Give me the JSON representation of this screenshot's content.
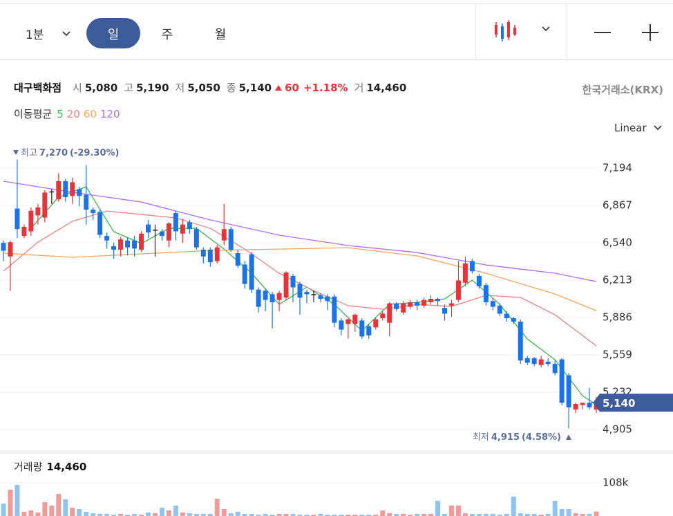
{
  "toolbar": {
    "interval": "1분",
    "tabs": [
      "일",
      "주",
      "월"
    ]
  },
  "header": {
    "name": "대구백화점",
    "fields": [
      {
        "label": "시",
        "value": "5,080"
      },
      {
        "label": "고",
        "value": "5,190"
      },
      {
        "label": "저",
        "value": "5,050"
      },
      {
        "label": "종",
        "value": "5,140"
      }
    ],
    "change": "60",
    "change_pct": "+1.18%",
    "volume_label": "거",
    "volume": "14,460",
    "exchange": "한국거래소(KRX)"
  },
  "ma_label": "이동평균",
  "scale": "Linear",
  "chart_data": {
    "type": "candlestick",
    "xlim": [
      -0.5,
      86.5
    ],
    "ylim": [
      4730,
      7303
    ],
    "yticks": [
      {
        "value": 7194,
        "label": "7,194"
      },
      {
        "value": 6867,
        "label": "6,867"
      },
      {
        "value": 6540,
        "label": "6,540"
      },
      {
        "value": 6213,
        "label": "6,213"
      },
      {
        "value": 5886,
        "label": "5,886"
      },
      {
        "value": 5559,
        "label": "5,559"
      },
      {
        "value": 5232,
        "label": "5,232"
      },
      {
        "value": 4905,
        "label": "4,905"
      }
    ],
    "grid": true,
    "colors": {
      "up": "#e8333a",
      "down": "#1a73e8",
      "flat": "#222222"
    },
    "open": [
      6540,
      6420,
      6840,
      6600,
      6640,
      6780,
      6760,
      6990,
      6920,
      7080,
      6950,
      7010,
      6960,
      6830,
      6810,
      6600,
      6510,
      6480,
      6560,
      6560,
      6480,
      6700,
      6655,
      6640,
      6560,
      6800,
      6620,
      6720,
      6660,
      6480,
      6480,
      6380,
      6560,
      6660,
      6450,
      6350,
      6440,
      6130,
      6120,
      6090,
      6040,
      6060,
      6250,
      6180,
      6110,
      6090,
      6080,
      6070,
      6070,
      5860,
      5830,
      5830,
      5860,
      5810,
      5800,
      5880,
      5840,
      6010,
      5930,
      5980,
      6020,
      5990,
      6020,
      6050,
      5970,
      5990,
      6040,
      6190,
      6380,
      6250,
      6170,
      6030,
      5990,
      5920,
      5880,
      5850,
      5530,
      5530,
      5470,
      5500,
      5480,
      5520,
      5380,
      5080,
      5120,
      5140,
      5080
    ],
    "high": [
      6560,
      6560,
      7270,
      6700,
      6850,
      6880,
      7000,
      7010,
      7150,
      7100,
      7110,
      7030,
      7220,
      6850,
      6830,
      6630,
      6540,
      6590,
      6590,
      6600,
      6640,
      6740,
      6700,
      6660,
      6720,
      6820,
      6750,
      6740,
      6680,
      6500,
      6500,
      6520,
      6880,
      6680,
      6480,
      6380,
      6460,
      6150,
      6140,
      6110,
      6120,
      6290,
      6270,
      6200,
      6130,
      6120,
      6100,
      6090,
      6090,
      5880,
      5880,
      5920,
      5880,
      5830,
      5890,
      5940,
      6020,
      6020,
      6030,
      6040,
      6040,
      6060,
      6080,
      6060,
      6000,
      6040,
      6380,
      6420,
      6400,
      6270,
      6190,
      6060,
      6010,
      5940,
      5890,
      5870,
      5550,
      5540,
      5550,
      5530,
      5510,
      5530,
      5400,
      5140,
      5140,
      5270,
      5190
    ],
    "low": [
      6380,
      6120,
      6580,
      6580,
      6600,
      6700,
      6720,
      6880,
      6900,
      6900,
      6880,
      6860,
      6700,
      6740,
      6580,
      6490,
      6400,
      6420,
      6430,
      6420,
      6460,
      6580,
      6420,
      6560,
      6500,
      6560,
      6540,
      6620,
      6480,
      6360,
      6330,
      6360,
      6520,
      6460,
      6320,
      6140,
      6100,
      5930,
      5940,
      5790,
      5940,
      6040,
      6020,
      5910,
      6010,
      6020,
      6020,
      5950,
      5800,
      5730,
      5700,
      5760,
      5700,
      5700,
      5780,
      5860,
      5720,
      5940,
      5910,
      5960,
      5950,
      5970,
      6000,
      5990,
      5860,
      5890,
      6020,
      6160,
      6270,
      6140,
      5990,
      5950,
      5900,
      5850,
      5830,
      5480,
      5470,
      5460,
      5450,
      5460,
      5380,
      5120,
      4915,
      5050,
      5080,
      5080,
      5050
    ],
    "close": [
      6470,
      6545,
      6660,
      6680,
      6820,
      6850,
      6980,
      6990,
      7080,
      6940,
      7070,
      6950,
      6830,
      6800,
      6610,
      6560,
      6480,
      6570,
      6500,
      6490,
      6620,
      6630,
      6655,
      6600,
      6710,
      6640,
      6700,
      6660,
      6500,
      6420,
      6370,
      6500,
      6660,
      6480,
      6340,
      6180,
      6130,
      5980,
      6040,
      6020,
      6100,
      6280,
      6150,
      6060,
      6090,
      6090,
      6050,
      6030,
      5840,
      5780,
      5870,
      5910,
      5720,
      5730,
      5870,
      5920,
      6010,
      5960,
      6010,
      6020,
      5990,
      6040,
      6050,
      6030,
      5920,
      6010,
      6210,
      6360,
      6290,
      6160,
      6020,
      5980,
      5920,
      5880,
      5850,
      5510,
      5490,
      5480,
      5520,
      5480,
      5400,
      5140,
      5100,
      5130,
      5140,
      5100,
      5140
    ],
    "series": [
      {
        "name": "5",
        "color": "#3cb44b",
        "x": [
          4,
          8,
          12,
          16,
          20,
          24,
          28,
          32,
          36,
          40,
          44,
          48,
          52,
          56,
          60,
          64,
          68,
          72,
          76,
          80,
          84,
          86
        ],
        "values": [
          6667,
          6940,
          7030,
          6637,
          6534,
          6667,
          6667,
          6485,
          6273,
          6001,
          6152,
          6001,
          5771,
          6001,
          6019,
          6049,
          6213,
          6001,
          5698,
          5517,
          5201,
          5123
        ]
      },
      {
        "name": "20",
        "color": "#f08080",
        "x": [
          0,
          5,
          10,
          15,
          20,
          25,
          30,
          35,
          40,
          45,
          50,
          55,
          60,
          65,
          70,
          75,
          80,
          86
        ],
        "values": [
          6292,
          6546,
          6728,
          6818,
          6788,
          6758,
          6667,
          6485,
          6273,
          6122,
          5989,
          5959,
          6001,
          5983,
          6080,
          6062,
          5910,
          5638
        ]
      },
      {
        "name": "60",
        "color": "#f5a35c",
        "x": [
          0,
          10,
          20,
          30,
          40,
          50,
          60,
          70,
          80,
          86
        ],
        "values": [
          6449,
          6413,
          6443,
          6473,
          6485,
          6497,
          6425,
          6273,
          6092,
          5946
        ]
      },
      {
        "name": "120",
        "color": "#b36bf2",
        "x": [
          0,
          10,
          20,
          30,
          40,
          50,
          60,
          70,
          80,
          86
        ],
        "values": [
          7079,
          6982,
          6897,
          6740,
          6607,
          6516,
          6455,
          6346,
          6274,
          6201
        ]
      }
    ],
    "high_annotation": {
      "prefix": "최고",
      "value": "7,270",
      "pct": "(-29.30%)"
    },
    "low_annotation": {
      "prefix": "최저",
      "value": "4,915",
      "pct": "(4.58%)"
    },
    "last_price_label": "5,140",
    "volume": {
      "title": "거래량",
      "value": "14,460",
      "ylim": [
        0,
        108000
      ],
      "yticks": [
        {
          "value": 108000,
          "label": "108k"
        }
      ],
      "values": [
        40500,
        85500,
        101250,
        13500,
        18000,
        11250,
        45000,
        33750,
        72000,
        54000,
        27000,
        22500,
        13500,
        9000,
        6750,
        6750,
        4500,
        6750,
        4500,
        6750,
        4500,
        11250,
        9000,
        27000,
        18000,
        33750,
        11250,
        9000,
        6750,
        6750,
        6750,
        56250,
        22500,
        9000,
        13500,
        6750,
        6750,
        4500,
        6750,
        4500,
        6750,
        6750,
        6750,
        4500,
        4500,
        4500,
        6750,
        4500,
        4500,
        4500,
        4500,
        4500,
        4500,
        4500,
        4500,
        18000,
        9000,
        6750,
        6750,
        4500,
        6750,
        6750,
        6750,
        49500,
        6750,
        33750,
        33750,
        9000,
        6750,
        6750,
        6750,
        6750,
        4500,
        6750,
        63000,
        9000,
        6750,
        6750,
        4500,
        6750,
        49500,
        22500,
        22500,
        9000,
        6750,
        6750,
        14460
      ]
    }
  }
}
